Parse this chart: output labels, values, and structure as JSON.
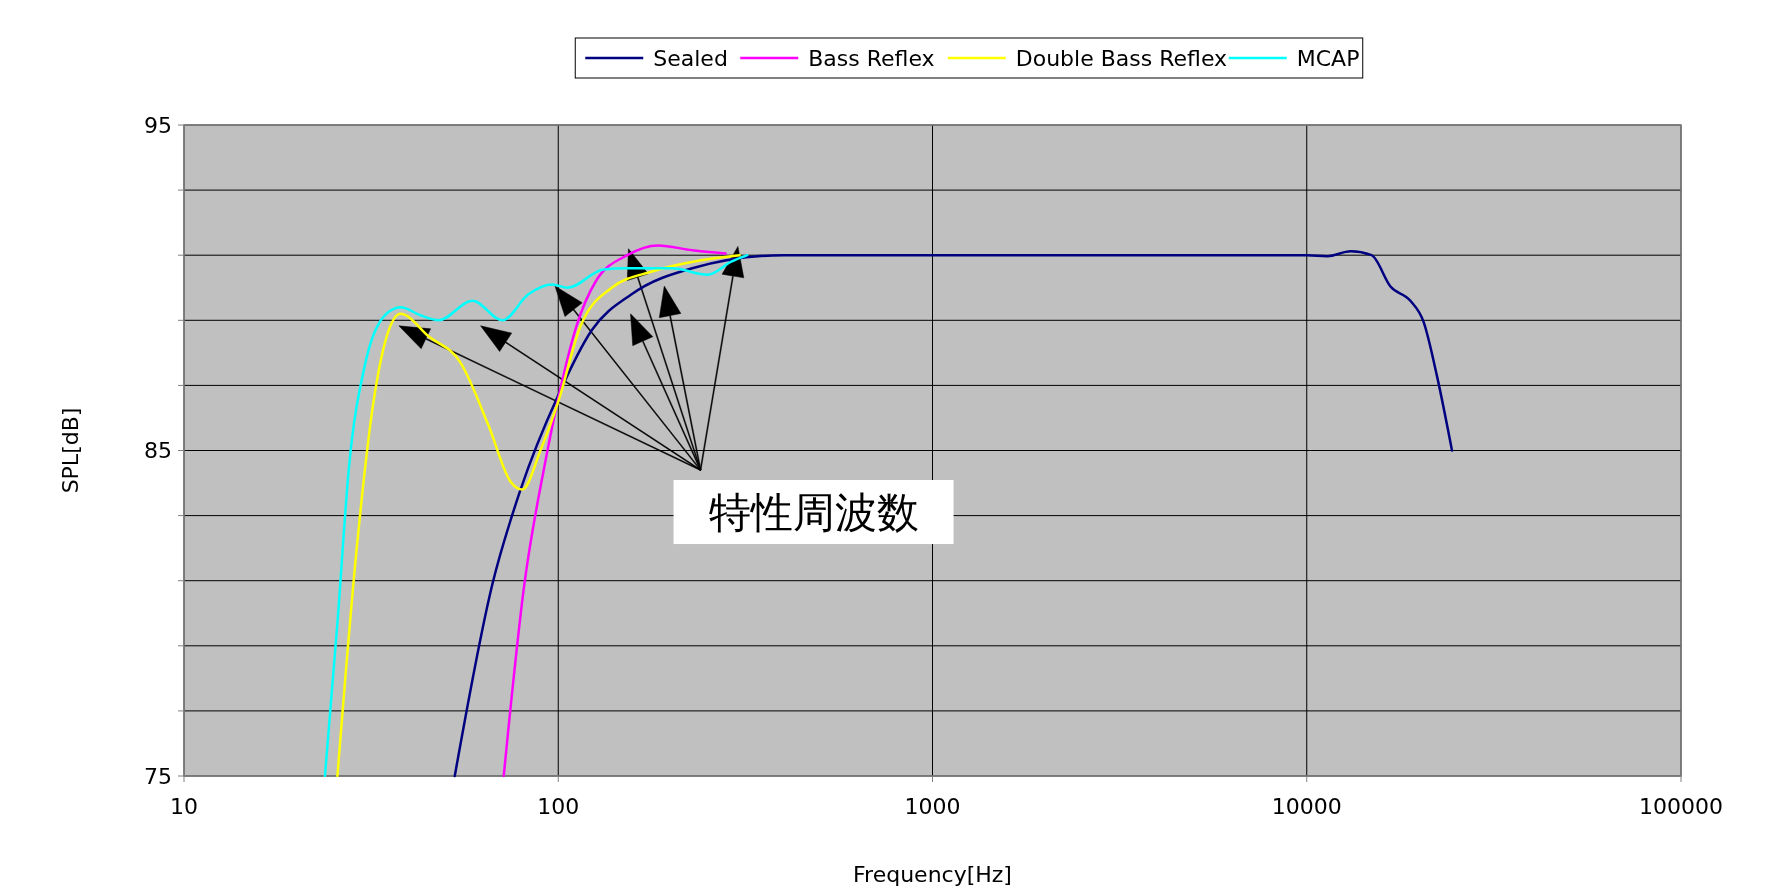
{
  "chart_data": {
    "type": "line",
    "xlabel": "Frequency[Hz]",
    "ylabel": "SPL[dB]",
    "log": "x",
    "xlim": [
      10,
      100000
    ],
    "xticks": [
      10,
      100,
      1000,
      10000,
      100000
    ],
    "ylim": [
      75,
      95
    ],
    "yticks": [
      75,
      {
        "value": 77,
        "label": null
      },
      {
        "value": 79,
        "label": null
      },
      {
        "value": 81,
        "label": null
      },
      {
        "value": 83,
        "label": null
      },
      85,
      {
        "value": 87,
        "label": null
      },
      {
        "value": 89,
        "label": null
      },
      {
        "value": 91,
        "label": null
      },
      {
        "value": 93,
        "label": null
      },
      95
    ],
    "grid": true,
    "legend": "top",
    "marker": "none",
    "line_style": "solid",
    "annotations": [
      "特性周波数"
    ],
    "series": [
      {
        "name": "Sealed",
        "color": "#000080",
        "x": [
          52.9,
          66.7,
          79.3,
          100,
          123,
          157,
          228,
          400,
          1000,
          10000,
          11350,
          13100,
          14900,
          16760,
          18920,
          20520,
          22270,
          24440
        ],
        "values": [
          75,
          80.9,
          83.8,
          86.7,
          88.7,
          89.8,
          90.6,
          91,
          91,
          91,
          90.97,
          91.12,
          91,
          90.03,
          89.6,
          88.95,
          87.3,
          85
        ]
      },
      {
        "name": "Bass Reflex",
        "color": "#ff00ff",
        "x": [
          71.5,
          81.2,
          91.8,
          100,
          111.7,
          126,
          153,
          184.6,
          228,
          280
        ],
        "values": [
          75,
          80.9,
          84.5,
          86.6,
          88.8,
          90.2,
          91,
          91.3,
          91.15,
          91.05
        ]
      },
      {
        "name": "Double Bass Reflex",
        "color": "#ffff00",
        "x": [
          25.7,
          29,
          32,
          34.8,
          37.9,
          45.1,
          54.8,
          65.2,
          74.5,
          80.2,
          89.6,
          100,
          114.5,
          139,
          178,
          239,
          305
        ],
        "values": [
          75,
          82.1,
          86.4,
          88.5,
          89.2,
          88.5,
          87.7,
          85.75,
          84.05,
          83.8,
          85,
          86.5,
          88.8,
          90,
          90.5,
          90.84,
          91
        ]
      },
      {
        "name": "MCAP",
        "color": "#00ffff",
        "x": [
          23.8,
          25.7,
          27.6,
          30.4,
          34.4,
          37.9,
          42.9,
          47.9,
          59,
          71,
          83.2,
          96.4,
          106,
          132,
          151.6,
          201,
          251,
          290,
          320
        ],
        "values": [
          75,
          79.7,
          84.5,
          87.6,
          89.15,
          89.4,
          89.15,
          89,
          89.6,
          89,
          89.8,
          90.1,
          90,
          90.56,
          90.6,
          90.6,
          90.4,
          90.8,
          91
        ]
      }
    ]
  }
}
